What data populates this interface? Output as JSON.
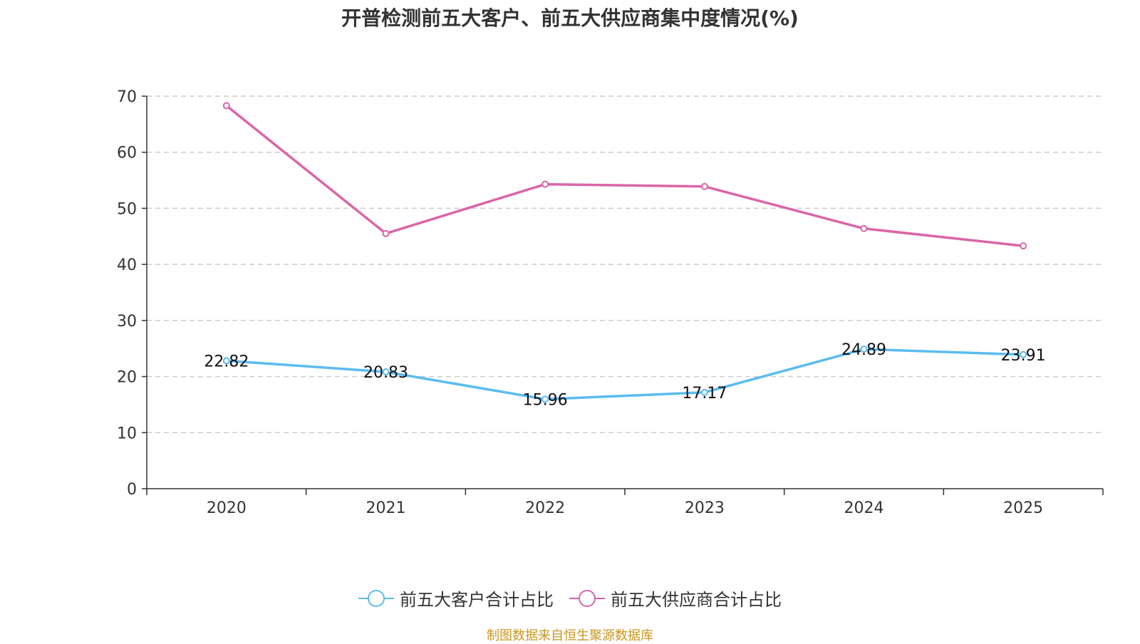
{
  "chart_data": {
    "type": "line",
    "title": "开普检测前五大客户、前五大供应商集中度情况(%)",
    "categories": [
      "2020",
      "2021",
      "2022",
      "2023",
      "2024",
      "2025"
    ],
    "ylim": [
      0,
      70
    ],
    "yticks": [
      0,
      10,
      20,
      30,
      40,
      50,
      60,
      70
    ],
    "grid": true,
    "legend_position": "bottom",
    "series": [
      {
        "name": "前五大客户合计占比",
        "color": "#5bbcf0",
        "values": [
          22.82,
          20.83,
          15.96,
          17.17,
          24.89,
          23.91
        ],
        "labels": [
          "22.82",
          "20.83",
          "15.96",
          "17.17",
          "24.89",
          "23.91"
        ],
        "show_labels": true
      },
      {
        "name": "前五大供应商合计占比",
        "color": "#d966a8",
        "values": [
          68.3,
          45.5,
          54.3,
          53.9,
          46.4,
          43.3
        ],
        "show_labels": false
      }
    ]
  },
  "source": "制图数据来自恒生聚源数据库"
}
